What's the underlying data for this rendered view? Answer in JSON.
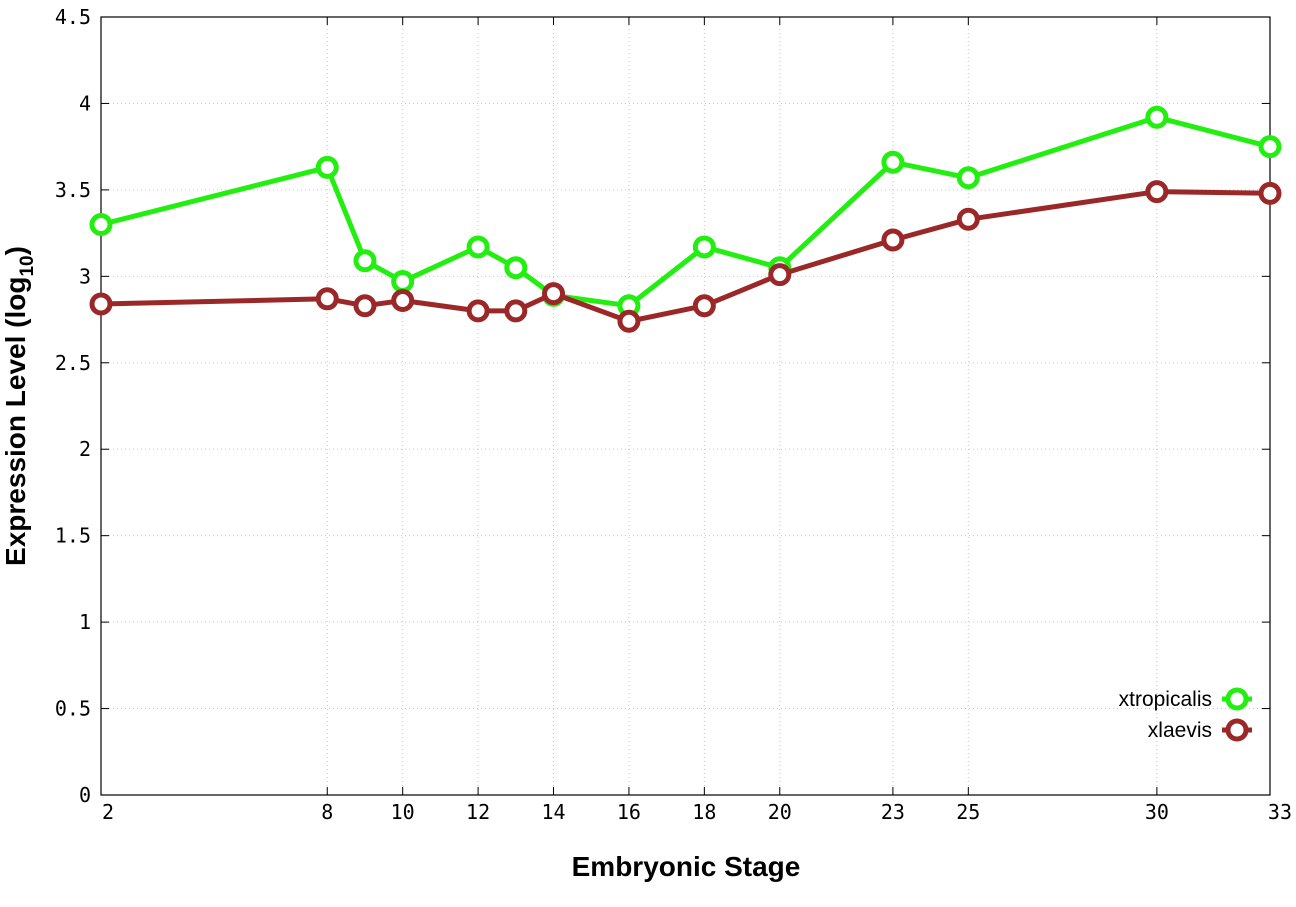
{
  "chart_data": {
    "type": "line",
    "title": "",
    "xlabel": "Embryonic Stage",
    "ylabel": "Expression Level (log",
    "ylabel_subscript": "10",
    "ylabel_close": ")",
    "xlim": [
      2,
      33
    ],
    "ylim": [
      0,
      4.5
    ],
    "x_ticks": [
      2,
      8,
      10,
      12,
      14,
      16,
      18,
      20,
      23,
      25,
      30,
      33
    ],
    "x_tick_labels": [
      "2",
      "8",
      "10",
      "12",
      "14",
      "16",
      "18",
      "20",
      "23",
      "25",
      "30",
      "33"
    ],
    "y_ticks": [
      0,
      0.5,
      1,
      1.5,
      2,
      2.5,
      3,
      3.5,
      4,
      4.5
    ],
    "y_tick_labels": [
      "0",
      "0.5",
      "1",
      "1.5",
      "2",
      "2.5",
      "3",
      "3.5",
      "4",
      "4.5"
    ],
    "grid": true,
    "legend_position": "bottom-right",
    "series": [
      {
        "name": "xtropicalis",
        "color": "#22ee10",
        "x": [
          2,
          8,
          9,
          10,
          12,
          13,
          14,
          16,
          18,
          20,
          23,
          25,
          30,
          33
        ],
        "y": [
          3.3,
          3.63,
          3.09,
          2.97,
          3.17,
          3.05,
          2.89,
          2.83,
          3.17,
          3.05,
          3.66,
          3.57,
          3.92,
          3.75
        ]
      },
      {
        "name": "xlaevis",
        "color": "#9b2828",
        "x": [
          2,
          8,
          9,
          10,
          12,
          13,
          14,
          16,
          18,
          20,
          23,
          25,
          30,
          33
        ],
        "y": [
          2.84,
          2.87,
          2.83,
          2.86,
          2.8,
          2.8,
          2.9,
          2.74,
          2.83,
          3.01,
          3.21,
          3.33,
          3.49,
          3.48
        ]
      }
    ]
  }
}
